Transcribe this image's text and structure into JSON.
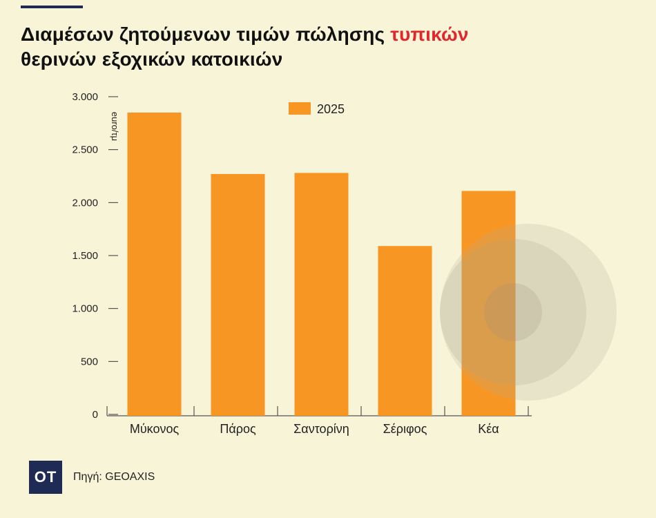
{
  "title": {
    "line1_part1": "Διαμέσων ζητούμενων τιμών πώλησης ",
    "line1_highlight": "τυπικών",
    "line2": "θερινών εξοχικών κατοικιών"
  },
  "colors": {
    "background": "#f7f4d8",
    "bar": "#f79623",
    "title_highlight": "#e3262b",
    "brand_navy": "#1f2a55"
  },
  "footer": {
    "logo": "OT",
    "source": "Πηγή: GEOAXIS"
  },
  "chart_data": {
    "type": "bar",
    "categories": [
      "Μύκονος",
      "Πάρος",
      "Σαντορίνη",
      "Σέριφος",
      "Κέα"
    ],
    "series": [
      {
        "name": "2025",
        "values": [
          2850,
          2270,
          2280,
          1590,
          2110
        ]
      }
    ],
    "ylabel": "euro/τμ",
    "ylim": [
      0,
      3000
    ],
    "yticks": [
      0,
      500,
      1000,
      1500,
      2000,
      2500,
      3000
    ],
    "ytick_labels": [
      "0",
      "500",
      "1.000",
      "1.500",
      "2.000",
      "2.500",
      "3.000"
    ],
    "grid": false,
    "legend_position": "top-center"
  }
}
